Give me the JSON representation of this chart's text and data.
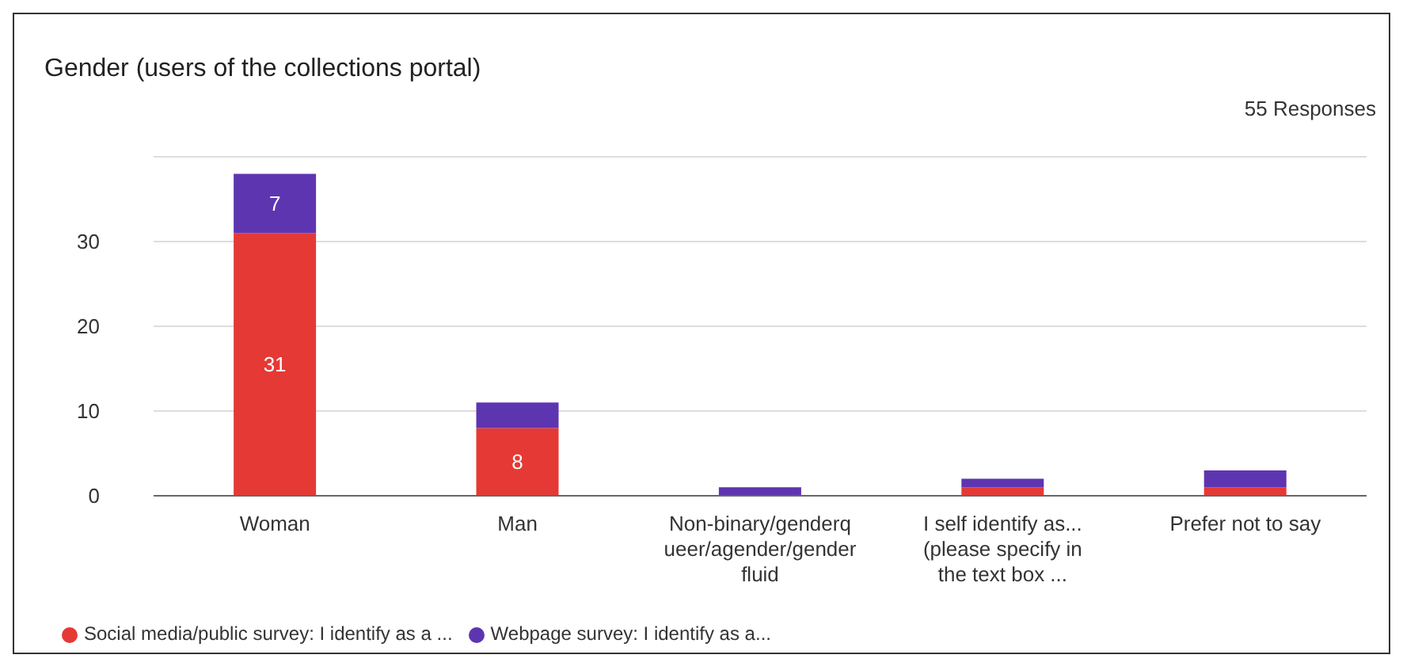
{
  "chart_data": {
    "type": "bar",
    "title": "Gender (users of the collections portal)",
    "annotations": [
      "55 Responses"
    ],
    "categories": [
      "Woman",
      "Man",
      "Non-binary/genderqueer/agender/gender fluid",
      "I self identify as... (please specify in the text box ...",
      "Prefer not to say"
    ],
    "stacked": true,
    "series": [
      {
        "name": "Social media/public survey: I identify as a ...",
        "color": "#e53935",
        "values": [
          31,
          8,
          0,
          1,
          1
        ],
        "value_labels": [
          "31",
          "8",
          null,
          null,
          null
        ]
      },
      {
        "name": "Webpage survey: I identify as a...",
        "color": "#5e35b1",
        "values": [
          7,
          3,
          1,
          1,
          2
        ],
        "value_labels": [
          "7",
          null,
          null,
          null,
          null
        ]
      }
    ],
    "ylim": [
      0,
      40
    ],
    "yticks": [
      0,
      10,
      20,
      30
    ],
    "grid": "y",
    "legend": "bottom left",
    "marker": "circle"
  }
}
